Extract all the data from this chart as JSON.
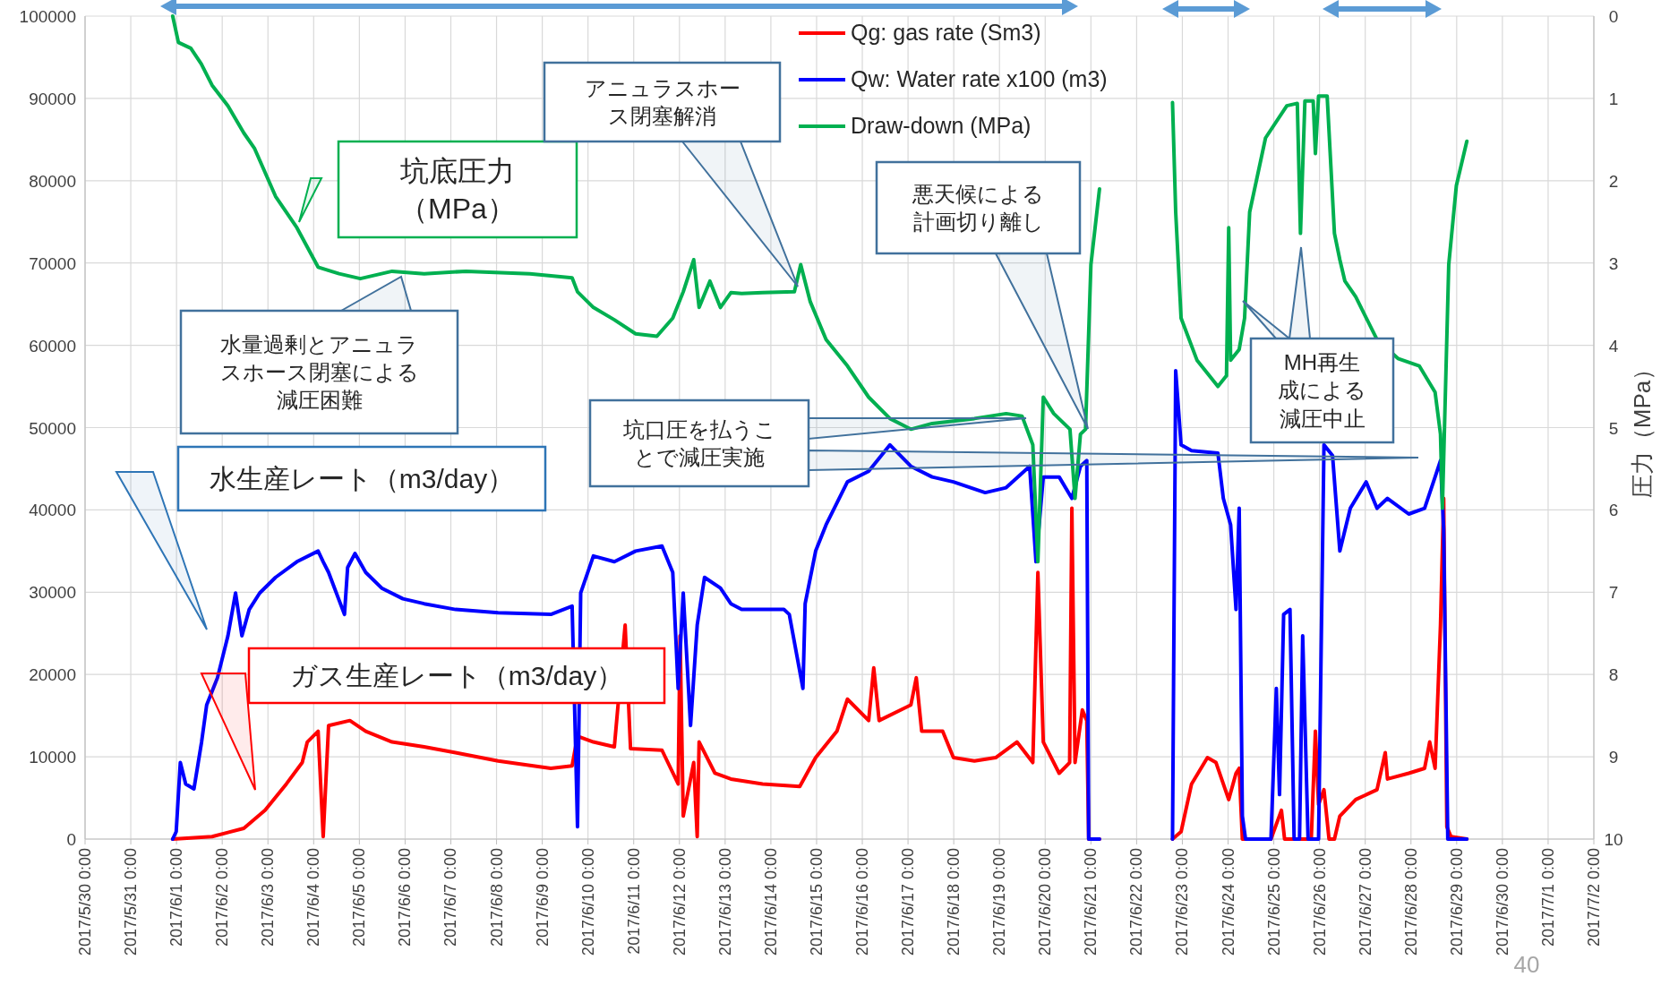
{
  "chart_data": {
    "type": "line",
    "y2label": "圧力（MPa）",
    "grid": true,
    "legend": "top right",
    "xlim": [
      "2017-05-30",
      "2017-07-02"
    ],
    "xticks": [
      {
        "value": "2017-05-30",
        "label": "2017/5/30 0:00"
      },
      {
        "value": "2017-05-31",
        "label": "2017/5/31 0:00"
      },
      {
        "value": "2017-06-01",
        "label": "2017/6/1 0:00"
      },
      {
        "value": "2017-06-02",
        "label": "2017/6/2 0:00"
      },
      {
        "value": "2017-06-03",
        "label": "2017/6/3 0:00"
      },
      {
        "value": "2017-06-04",
        "label": "2017/6/4 0:00"
      },
      {
        "value": "2017-06-05",
        "label": "2017/6/5 0:00"
      },
      {
        "value": "2017-06-06",
        "label": "2017/6/6 0:00"
      },
      {
        "value": "2017-06-07",
        "label": "2017/6/7 0:00"
      },
      {
        "value": "2017-06-08",
        "label": "2017/6/8 0:00"
      },
      {
        "value": "2017-06-09",
        "label": "2017/6/9 0:00"
      },
      {
        "value": "2017-06-10",
        "label": "2017/6/10 0:00"
      },
      {
        "value": "2017-06-11",
        "label": "2017/6/11 0:00"
      },
      {
        "value": "2017-06-12",
        "label": "2017/6/12 0:00"
      },
      {
        "value": "2017-06-13",
        "label": "2017/6/13 0:00"
      },
      {
        "value": "2017-06-14",
        "label": "2017/6/14 0:00"
      },
      {
        "value": "2017-06-15",
        "label": "2017/6/15 0:00"
      },
      {
        "value": "2017-06-16",
        "label": "2017/6/16 0:00"
      },
      {
        "value": "2017-06-17",
        "label": "2017/6/17 0:00"
      },
      {
        "value": "2017-06-18",
        "label": "2017/6/18 0:00"
      },
      {
        "value": "2017-06-19",
        "label": "2017/6/19 0:00"
      },
      {
        "value": "2017-06-20",
        "label": "2017/6/20 0:00"
      },
      {
        "value": "2017-06-21",
        "label": "2017/6/21 0:00"
      },
      {
        "value": "2017-06-22",
        "label": "2017/6/22 0:00"
      },
      {
        "value": "2017-06-23",
        "label": "2017/6/23 0:00"
      },
      {
        "value": "2017-06-24",
        "label": "2017/6/24 0:00"
      },
      {
        "value": "2017-06-25",
        "label": "2017/6/25 0:00"
      },
      {
        "value": "2017-06-26",
        "label": "2017/6/26 0:00"
      },
      {
        "value": "2017-06-27",
        "label": "2017/6/27 0:00"
      },
      {
        "value": "2017-06-28",
        "label": "2017/6/28 0:00"
      },
      {
        "value": "2017-06-29",
        "label": "2017/6/29 0:00"
      },
      {
        "value": "2017-06-30",
        "label": "2017/6/30 0:00"
      },
      {
        "value": "2017-07-01",
        "label": "2017/7/1 0:00"
      },
      {
        "value": "2017-07-02",
        "label": "2017/7/2 0:00"
      }
    ],
    "ylim": [
      0,
      100000
    ],
    "yticks": [
      0,
      10000,
      20000,
      30000,
      40000,
      50000,
      60000,
      70000,
      80000,
      90000,
      100000
    ],
    "y2lim": [
      10,
      0
    ],
    "y2ticks": [
      0,
      1,
      2,
      3,
      4,
      5,
      6,
      7,
      8,
      9,
      10
    ],
    "series": [
      {
        "name": "Qg: gas rate (Sm3)",
        "color": "#ff0000",
        "x": [
          "2017-05-31T22:00",
          "2017-06-01T18:40",
          "2017-06-02T11:20",
          "2017-06-02T22:30",
          "2017-06-03T09:40",
          "2017-06-03T18:00",
          "2017-06-03T20:40",
          "2017-06-04T02:20",
          "2017-06-04T05:00",
          "2017-06-04T07:50",
          "2017-06-04T19:00",
          "2017-06-05T03:20",
          "2017-06-05T17:10",
          "2017-06-06T10:00",
          "2017-06-07T02:30",
          "2017-06-08T00:50",
          "2017-06-09T04:30",
          "2017-06-09T15:40",
          "2017-06-09T18:30",
          "2017-06-10T02:50",
          "2017-06-10T13:50",
          "2017-06-10T19:30",
          "2017-06-10T22:20",
          "2017-06-11T14:50",
          "2017-06-11T23:20",
          "2017-06-12T00:20",
          "2017-06-12T02:00",
          "2017-06-12T07:30",
          "2017-06-12T09:20",
          "2017-06-12T10:20",
          "2017-06-12T18:40",
          "2017-06-13T03:00",
          "2017-06-13T19:40",
          "2017-06-14T15:10",
          "2017-06-14T23:30",
          "2017-06-15T10:40",
          "2017-06-15T16:10",
          "2017-06-16T03:20",
          "2017-06-16T06:00",
          "2017-06-16T08:50",
          "2017-06-17T01:30",
          "2017-06-17T04:20",
          "2017-06-17T07:10",
          "2017-06-17T18:10",
          "2017-06-17T23:50",
          "2017-06-18T10:50",
          "2017-06-18T22:00",
          "2017-06-19T09:10",
          "2017-06-19T17:30",
          "2017-06-19T20:10",
          "2017-06-19T23:00",
          "2017-06-20T07:20",
          "2017-06-20T12:50",
          "2017-06-20T14:00",
          "2017-06-20T15:40",
          "2017-06-20T19:30",
          "2017-06-20T21:50",
          "2017-06-20T22:50",
          "2017-06-21T04:30",
          "2017-06-21T12:00",
          "2017-06-22T18:50",
          "2017-06-22T23:20",
          "2017-06-23T04:50",
          "2017-06-23T13:10",
          "2017-06-23T17:40",
          "2017-06-23T21:30",
          "2017-06-24T00:20",
          "2017-06-24T04:10",
          "2017-06-24T05:50",
          "2017-06-24T07:30",
          "2017-06-24T22:30",
          "2017-06-25T04:00",
          "2017-06-25T05:40",
          "2017-06-25T19:40",
          "2017-06-25T21:50",
          "2017-06-25T23:30",
          "2017-06-26T02:20",
          "2017-06-26T05:00",
          "2017-06-26T07:50",
          "2017-06-26T10:40",
          "2017-06-26T19:00",
          "2017-06-27T06:10",
          "2017-06-27T10:30",
          "2017-06-27T11:40",
          "2017-06-27T22:50",
          "2017-06-28T07:10",
          "2017-06-28T09:50",
          "2017-06-28T12:40",
          "2017-06-28T15:30",
          "2017-06-28T17:10",
          "2017-06-28T18:50",
          "2017-06-28T21:00",
          "2017-06-29T05:20"
        ],
        "values": [
          0,
          300,
          1300,
          3500,
          6700,
          9300,
          11800,
          13100,
          300,
          13800,
          14400,
          13100,
          11800,
          11200,
          10500,
          9500,
          8600,
          8900,
          12500,
          11800,
          11200,
          26000,
          11000,
          10800,
          6700,
          24700,
          2800,
          9300,
          300,
          11800,
          8000,
          7300,
          6700,
          6400,
          9900,
          13100,
          17000,
          14400,
          20800,
          14400,
          16300,
          19600,
          13100,
          13100,
          9900,
          9500,
          9900,
          11800,
          9300,
          32400,
          11800,
          8000,
          9300,
          40200,
          9300,
          15700,
          14400,
          0,
          0,
          null,
          0,
          900,
          6700,
          9900,
          9300,
          6700,
          4800,
          8000,
          8600,
          0,
          0,
          3500,
          0,
          0,
          13100,
          4200,
          6000,
          0,
          0,
          2800,
          4800,
          6000,
          10500,
          7300,
          8000,
          8600,
          11800,
          8600,
          26000,
          41400,
          1500,
          300,
          0
        ]
      },
      {
        "name": "Qw: Water rate x100 (m3)",
        "color": "#0000ff",
        "x": [
          "2017-05-31T22:00",
          "2017-05-31T23:50",
          "2017-06-01T02:00",
          "2017-06-01T04:50",
          "2017-06-01T09:10",
          "2017-06-01T13:10",
          "2017-06-01T15:50",
          "2017-06-01T21:30",
          "2017-06-02T03:00",
          "2017-06-02T07:00",
          "2017-06-02T10:20",
          "2017-06-02T14:10",
          "2017-06-02T19:40",
          "2017-06-03T04:00",
          "2017-06-03T15:10",
          "2017-06-04T02:20",
          "2017-06-04T05:00",
          "2017-06-04T07:50",
          "2017-06-04T16:10",
          "2017-06-04T17:50",
          "2017-06-04T21:40",
          "2017-06-05T03:20",
          "2017-06-05T11:40",
          "2017-06-05T22:50",
          "2017-06-06T10:00",
          "2017-06-07T02:30",
          "2017-06-08T00:50",
          "2017-06-09T04:30",
          "2017-06-09T15:40",
          "2017-06-09T18:30",
          "2017-06-09T20:10",
          "2017-06-10T02:50",
          "2017-06-10T13:50",
          "2017-06-11T01:00",
          "2017-06-11T14:50",
          "2017-06-11T20:30",
          "2017-06-11T23:20",
          "2017-06-12T02:00",
          "2017-06-12T05:50",
          "2017-06-12T09:20",
          "2017-06-12T13:10",
          "2017-06-12T21:30",
          "2017-06-13T03:00",
          "2017-06-13T08:40",
          "2017-06-13T19:40",
          "2017-06-14T06:50",
          "2017-06-14T09:40",
          "2017-06-14T16:50",
          "2017-06-14T18:00",
          "2017-06-14T23:30",
          "2017-06-15T05:00",
          "2017-06-15T16:10",
          "2017-06-16T03:20",
          "2017-06-16T14:30",
          "2017-06-17T01:30",
          "2017-06-17T12:40",
          "2017-06-17T23:50",
          "2017-06-18T16:30",
          "2017-06-19T03:30",
          "2017-06-19T15:50",
          "2017-06-19T19:10",
          "2017-06-19T23:00",
          "2017-06-20T07:20",
          "2017-06-20T14:00",
          "2017-06-20T18:30",
          "2017-06-20T21:50",
          "2017-06-20T22:50",
          "2017-06-21T04:30",
          "2017-06-21T12:00",
          "2017-06-22T18:50",
          "2017-06-22T20:30",
          "2017-06-22T23:20",
          "2017-06-23T04:50",
          "2017-06-23T18:40",
          "2017-06-23T21:30",
          "2017-06-24T01:20",
          "2017-06-24T04:10",
          "2017-06-24T05:50",
          "2017-06-24T07:30",
          "2017-06-24T09:10",
          "2017-06-24T22:30",
          "2017-06-25T01:20",
          "2017-06-25T03:00",
          "2017-06-25T05:10",
          "2017-06-25T08:30",
          "2017-06-25T10:40",
          "2017-06-25T13:30",
          "2017-06-25T15:10",
          "2017-06-25T18:00",
          "2017-06-25T23:30",
          "2017-06-26T02:20",
          "2017-06-26T06:50",
          "2017-06-26T10:40",
          "2017-06-26T16:10",
          "2017-06-27T00:30",
          "2017-06-27T06:10",
          "2017-06-27T11:40",
          "2017-06-27T22:50",
          "2017-06-28T07:10",
          "2017-06-28T12:40",
          "2017-06-28T15:30",
          "2017-06-28T17:10",
          "2017-06-28T19:20",
          "2017-06-29T05:20"
        ],
        "values": [
          0,
          900,
          9300,
          6700,
          6100,
          11800,
          16300,
          19600,
          24700,
          29900,
          24700,
          27900,
          29900,
          31800,
          33700,
          35000,
          33700,
          32400,
          27300,
          33000,
          34700,
          32400,
          30500,
          29200,
          28600,
          27900,
          27500,
          27300,
          28300,
          1500,
          29900,
          34400,
          33700,
          35000,
          35600,
          32400,
          18300,
          29900,
          13800,
          26000,
          31800,
          30500,
          28600,
          27900,
          27900,
          27900,
          27300,
          18300,
          28600,
          35000,
          38200,
          43400,
          44700,
          47900,
          45300,
          44000,
          43400,
          42100,
          42700,
          45300,
          33700,
          44000,
          44000,
          41400,
          45300,
          46000,
          0,
          0,
          null,
          0,
          56900,
          47900,
          47200,
          46900,
          41400,
          38200,
          27900,
          40200,
          2800,
          0,
          0,
          18300,
          5400,
          27300,
          27900,
          0,
          0,
          24700,
          0,
          0,
          47900,
          46600,
          35000,
          40200,
          43400,
          40200,
          41400,
          39500,
          40200,
          44000,
          46000,
          37600,
          0,
          0
        ]
      },
      {
        "name": "Draw-down (MPa)",
        "color": "#00b050",
        "axis": "y2",
        "x": [
          "2017-05-31T22:00",
          "2017-06-01T01:00",
          "2017-06-01T07:30",
          "2017-06-01T13:00",
          "2017-06-01T18:40",
          "2017-06-02T03:00",
          "2017-06-02T11:20",
          "2017-06-02T17:00",
          "2017-06-03T04:00",
          "2017-06-03T15:10",
          "2017-06-04T02:20",
          "2017-06-04T13:20",
          "2017-06-05T00:30",
          "2017-06-05T17:10",
          "2017-06-06T10:00",
          "2017-06-07T08:00",
          "2017-06-08T17:30",
          "2017-06-09T15:40",
          "2017-06-09T18:30",
          "2017-06-10T02:50",
          "2017-06-10T13:50",
          "2017-06-11T01:00",
          "2017-06-11T12:10",
          "2017-06-11T20:30",
          "2017-06-12T02:00",
          "2017-06-12T07:30",
          "2017-06-12T10:20",
          "2017-06-12T16:00",
          "2017-06-12T21:30",
          "2017-06-13T03:00",
          "2017-06-13T08:40",
          "2017-06-13T19:40",
          "2017-06-14T12:20",
          "2017-06-14T15:40",
          "2017-06-14T20:40",
          "2017-06-15T05:00",
          "2017-06-15T16:10",
          "2017-06-16T03:20",
          "2017-06-16T14:30",
          "2017-06-17T01:30",
          "2017-06-17T12:40",
          "2017-06-18T10:50",
          "2017-06-19T03:30",
          "2017-06-19T11:50",
          "2017-06-19T17:30",
          "2017-06-19T20:10",
          "2017-06-19T23:00",
          "2017-06-20T04:30",
          "2017-06-20T13:00",
          "2017-06-20T15:40",
          "2017-06-20T18:30",
          "2017-06-20T21:10",
          "2017-06-21T00:00",
          "2017-06-21T04:30",
          "2017-06-21T12:00",
          "2017-06-22T18:50",
          "2017-06-22T20:30",
          "2017-06-22T23:20",
          "2017-06-23T07:40",
          "2017-06-23T18:40",
          "2017-06-23T23:10",
          "2017-06-24T00:20",
          "2017-06-24T01:20",
          "2017-06-24T05:50",
          "2017-06-24T08:40",
          "2017-06-24T11:20",
          "2017-06-24T19:40",
          "2017-06-25T06:50",
          "2017-06-25T12:20",
          "2017-06-25T14:00",
          "2017-06-25T16:20",
          "2017-06-25T20:40",
          "2017-06-25T21:50",
          "2017-06-25T23:30",
          "2017-06-26T04:00",
          "2017-06-26T07:50",
          "2017-06-26T10:40",
          "2017-06-26T13:20",
          "2017-06-26T19:00",
          "2017-06-27T06:10",
          "2017-06-27T17:10",
          "2017-06-28T04:20",
          "2017-06-28T12:40",
          "2017-06-28T15:30",
          "2017-06-28T16:30",
          "2017-06-28T19:50",
          "2017-06-28T23:50",
          "2017-06-29T05:20"
        ],
        "values": [
          0,
          0.32,
          0.39,
          0.58,
          0.84,
          1.09,
          1.42,
          1.61,
          2.19,
          2.57,
          3.05,
          3.13,
          3.19,
          3.1,
          3.13,
          3.1,
          3.13,
          3.18,
          3.35,
          3.54,
          3.69,
          3.86,
          3.89,
          3.67,
          3.35,
          2.96,
          3.54,
          3.22,
          3.54,
          3.36,
          3.37,
          3.36,
          3.35,
          3.02,
          3.47,
          3.93,
          4.25,
          4.63,
          4.89,
          5.02,
          4.95,
          4.89,
          4.83,
          4.86,
          5.21,
          6.63,
          4.63,
          4.83,
          5.02,
          5.86,
          5.08,
          5.02,
          3.02,
          2.1,
          null,
          1.05,
          2.38,
          3.67,
          4.18,
          4.5,
          4.37,
          2.57,
          4.18,
          4.05,
          3.67,
          2.38,
          1.48,
          1.09,
          1.06,
          2.64,
          1.03,
          1.03,
          1.67,
          0.97,
          0.97,
          2.64,
          2.96,
          3.22,
          3.41,
          3.93,
          4.16,
          4.25,
          4.57,
          5.08,
          5.98,
          3.02,
          2.06,
          1.52
        ]
      }
    ],
    "annotations": [
      "坑底圧力（MPa）",
      "アニュラスホース閉塞解消",
      "悪天候による計画切り離し",
      "水量過剰とアニュラスホース閉塞による減圧困難",
      "坑口圧を払うことで減圧実施",
      "MH再生成による減圧中止",
      "水生産レート（m3/day）",
      "ガス生産レート（m3/day）",
      "40"
    ]
  }
}
